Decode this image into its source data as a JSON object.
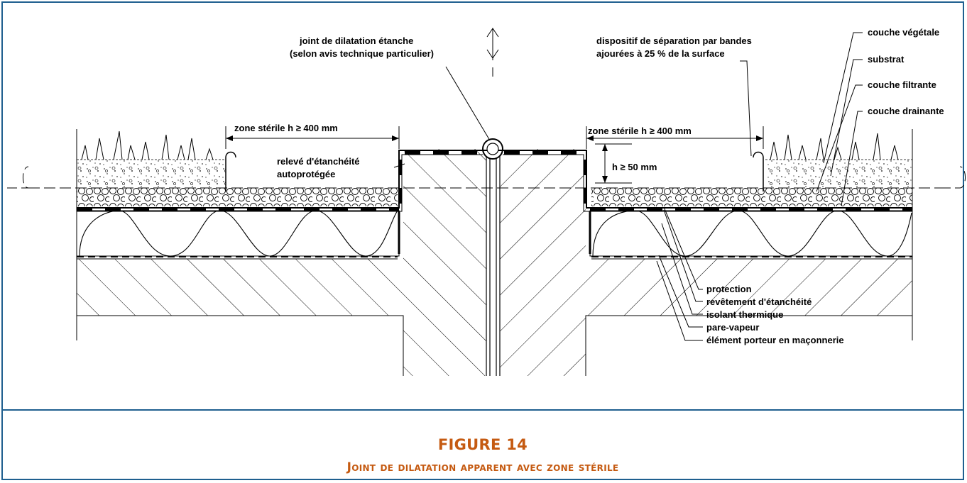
{
  "figure": {
    "number": "FIGURE 14",
    "title": "Joint de dilatation apparent avec zone stérile"
  },
  "labels": {
    "joint_line1": "joint de dilatation étanche",
    "joint_line2": "(selon avis technique particulier)",
    "separation_line1": "dispositif de séparation par bandes",
    "separation_line2": "ajourées à 25 % de la surface",
    "zone_left": "zone stérile h ≥ 400 mm",
    "zone_right": "zone stérile h ≥ 400 mm",
    "releve_line1": "relevé d'étanchéité",
    "releve_line2": "autoprotégée",
    "height": "h ≥ 50 mm",
    "couche_vegetale": "couche végétale",
    "substrat": "substrat",
    "couche_filtrante": "couche filtrante",
    "couche_drainante": "couche drainante",
    "protection": "protection",
    "revetement": "revêtement d'étanchéité",
    "isolant": "isolant thermique",
    "pare_vapeur": "pare-vapeur",
    "element_porteur": "élément porteur en maçonnerie"
  },
  "colors": {
    "frame": "#1f5f8f",
    "caption_text": "#c55a11",
    "line": "#000000"
  }
}
